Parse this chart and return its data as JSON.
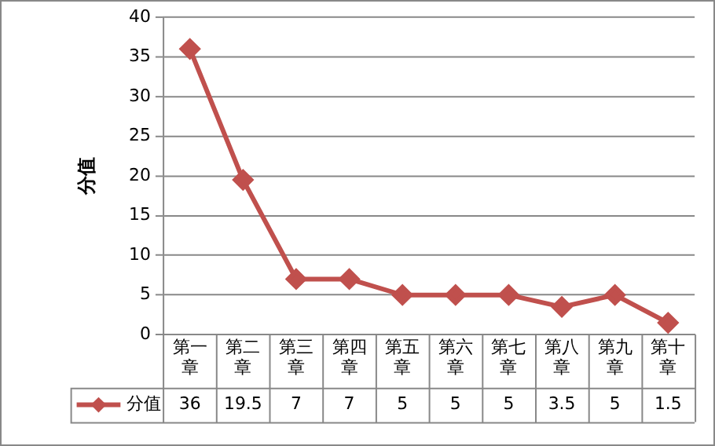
{
  "chart_data": {
    "type": "line",
    "ylabel": "分值",
    "categories": [
      "第一章",
      "第二章",
      "第三章",
      "第四章",
      "第五章",
      "第六章",
      "第七章",
      "第八章",
      "第九章",
      "第十章"
    ],
    "series": [
      {
        "name": "分值",
        "color": "#c0504d",
        "values": [
          36,
          19.5,
          7,
          7,
          5,
          5,
          5,
          3.5,
          5,
          1.5
        ]
      }
    ],
    "ylim": [
      0,
      40
    ],
    "yticks": [
      0,
      5,
      10,
      15,
      20,
      25,
      30,
      35,
      40
    ],
    "grid": "y",
    "legend": "bottom",
    "marker": "diamond",
    "line_style": "solid",
    "data_labels": true
  }
}
